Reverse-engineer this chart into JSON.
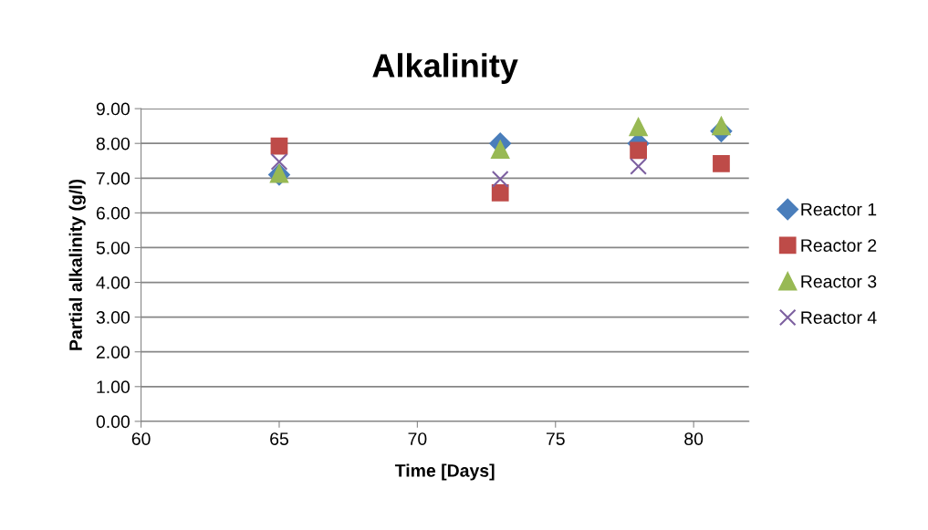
{
  "chart_data": {
    "type": "scatter",
    "title": "Alkalinity",
    "xlabel": "Time [Days]",
    "ylabel": "Partial alkalinity (g/l)",
    "x": [
      65,
      73,
      78,
      81
    ],
    "series": [
      {
        "name": "Reactor 1",
        "color": "#4a7ebb",
        "marker": "diamond",
        "values": [
          7.1,
          8.0,
          8.0,
          8.35
        ]
      },
      {
        "name": "Reactor 2",
        "color": "#be4b48",
        "marker": "square",
        "values": [
          7.92,
          6.58,
          7.8,
          7.42
        ]
      },
      {
        "name": "Reactor 3",
        "color": "#98b954",
        "marker": "triangle",
        "values": [
          7.13,
          7.82,
          8.47,
          8.5
        ]
      },
      {
        "name": "Reactor 4",
        "color": "#7d60a0",
        "marker": "cross",
        "values": [
          7.47,
          6.97,
          7.34,
          null
        ]
      }
    ],
    "xlim": [
      60,
      82
    ],
    "xticks": [
      60,
      65,
      70,
      75,
      80
    ],
    "ylim": [
      0,
      9
    ],
    "yticks": [
      {
        "value": 0,
        "label": "0.00"
      },
      {
        "value": 1,
        "label": "1.00"
      },
      {
        "value": 2,
        "label": "2.00"
      },
      {
        "value": 3,
        "label": "3.00"
      },
      {
        "value": 4,
        "label": "4.00"
      },
      {
        "value": 5,
        "label": "5.00"
      },
      {
        "value": 6,
        "label": "6.00"
      },
      {
        "value": 7,
        "label": "7.00"
      },
      {
        "value": 8,
        "label": "8.00"
      },
      {
        "value": 9,
        "label": "9.00"
      }
    ],
    "grid": "y",
    "legend": "right"
  }
}
